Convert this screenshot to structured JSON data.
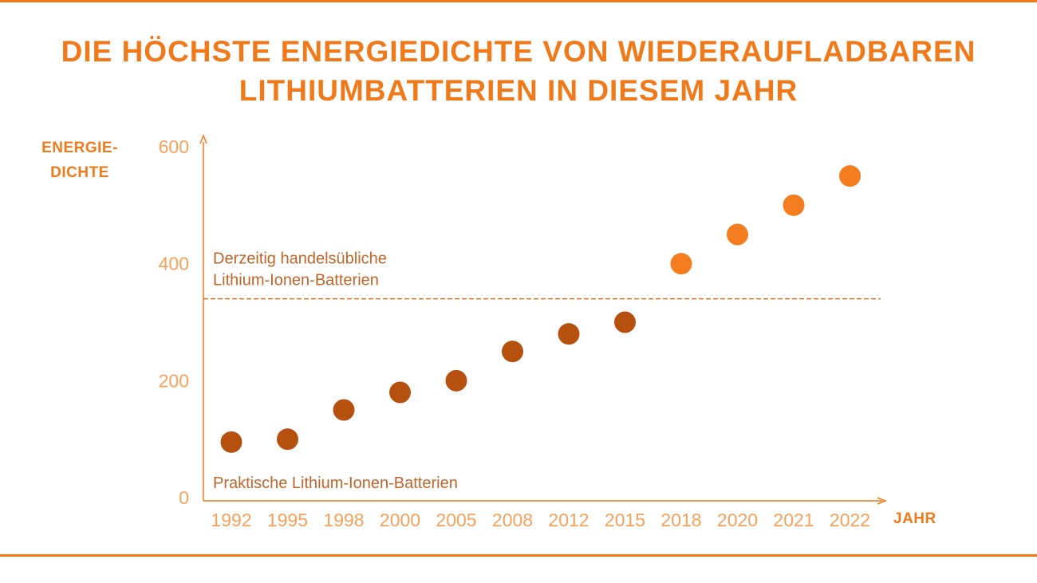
{
  "chart_data": {
    "type": "scatter",
    "title": "DIE HÖCHSTE ENERGIEDICHTE VON WIEDERAUFLADBAREN LITHIUMBATTERIEN IN DIESEM JAHR",
    "ylabel": "ENERGIE-DICHTE",
    "ylabel_lines": [
      "ENERGIE-",
      "DICHTE"
    ],
    "xlabel": "JAHR",
    "categories": [
      "1992",
      "1995",
      "1998",
      "2000",
      "2005",
      "2008",
      "2012",
      "2015",
      "2018",
      "2020",
      "2021",
      "2022"
    ],
    "values": [
      95,
      100,
      150,
      180,
      200,
      250,
      280,
      300,
      400,
      450,
      500,
      550
    ],
    "point_colors": [
      "#b5500f",
      "#b5500f",
      "#b5500f",
      "#b5500f",
      "#b5500f",
      "#b5500f",
      "#b5500f",
      "#b5500f",
      "#f47d1f",
      "#f47d1f",
      "#f47d1f",
      "#f47d1f"
    ],
    "ylim": [
      0,
      600
    ],
    "yticks": [
      0,
      200,
      400,
      600
    ],
    "reference_line": {
      "y": 340,
      "style": "dashed",
      "label_lines": [
        "Derzeitig handelsübliche",
        "Lithium-Ionen-Batterien"
      ]
    },
    "annotation_bottom": "Praktische Lithium-Ionen-Batterien",
    "grid": false,
    "accent_color": "#f07a1a"
  }
}
